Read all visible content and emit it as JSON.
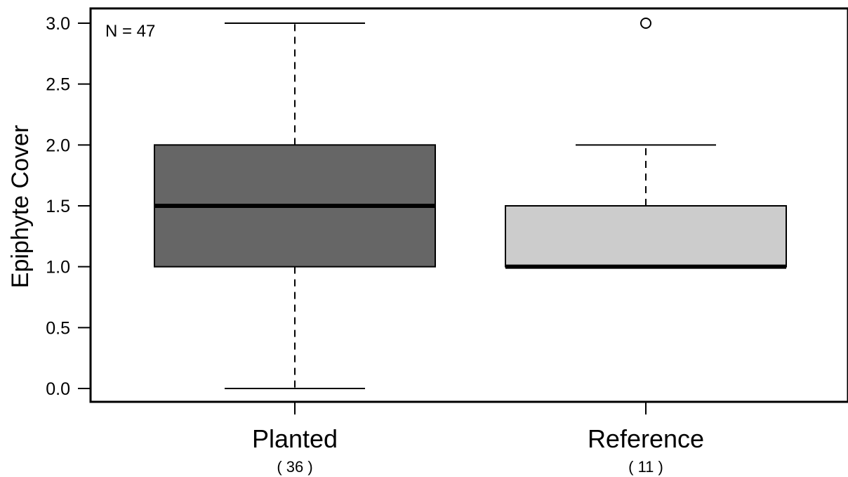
{
  "chart_data": {
    "type": "boxplot",
    "ylabel": "Epiphyte Cover",
    "ylim": [
      0,
      3.0
    ],
    "yticks": [
      "0.0",
      "0.5",
      "1.0",
      "1.5",
      "2.0",
      "2.5",
      "3.0"
    ],
    "annotation": "N = 47",
    "categories": [
      "Planted",
      "Reference"
    ],
    "counts": [
      "( 36 )",
      "( 11 )"
    ],
    "boxes": [
      {
        "category": "Planted",
        "whisker_low": 0.0,
        "q1": 1.0,
        "median": 1.5,
        "q3": 2.0,
        "whisker_high": 3.0,
        "outliers": [],
        "color": "#666666"
      },
      {
        "category": "Reference",
        "whisker_low": 1.0,
        "q1": 1.0,
        "median": 1.0,
        "q3": 1.5,
        "whisker_high": 2.0,
        "outliers": [
          3.0
        ],
        "color": "#cccccc"
      }
    ],
    "grid": false
  }
}
